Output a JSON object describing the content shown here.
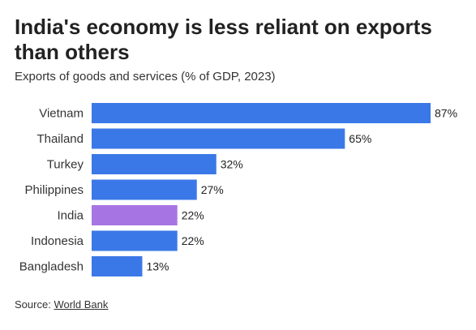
{
  "header": {
    "title": "India's economy is less reliant on exports than others",
    "subtitle": "Exports of goods and services (% of GDP, 2023)"
  },
  "footer": {
    "source_prefix": "Source:",
    "source_link": "World Bank"
  },
  "colors": {
    "bar": "#3b78e7",
    "highlight": "#a775e3"
  },
  "chart_data": {
    "type": "bar",
    "orientation": "horizontal",
    "title": "India's economy is less reliant on exports than others",
    "subtitle": "Exports of goods and services (% of GDP, 2023)",
    "categories": [
      "Vietnam",
      "Thailand",
      "Turkey",
      "Philippines",
      "India",
      "Indonesia",
      "Bangladesh"
    ],
    "values": [
      87,
      65,
      32,
      27,
      22,
      22,
      13
    ],
    "value_labels": [
      "87%",
      "65%",
      "32%",
      "27%",
      "22%",
      "22%",
      "13%"
    ],
    "highlight": "India",
    "xlim": [
      0,
      87
    ],
    "grid": false,
    "legend": "none"
  }
}
